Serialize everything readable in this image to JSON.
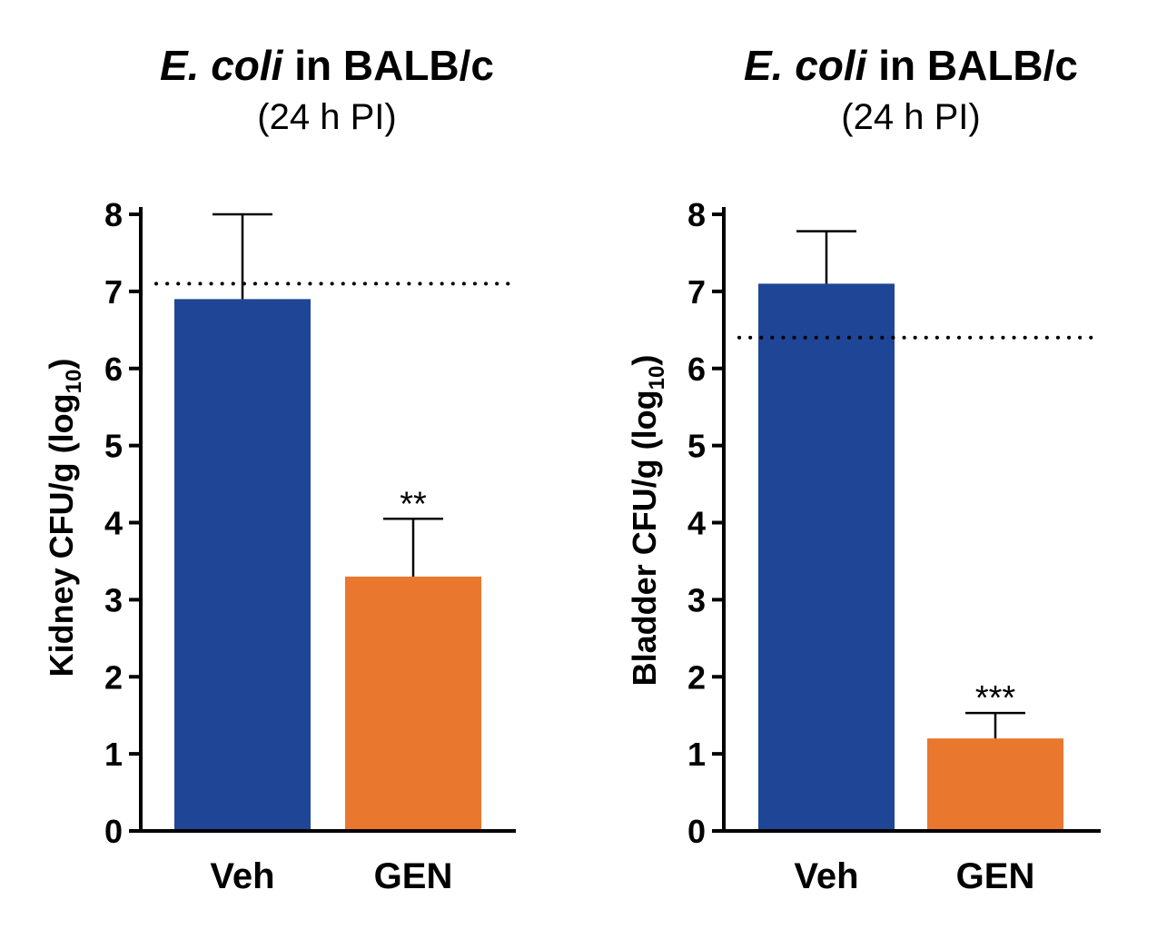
{
  "chart_data": [
    {
      "type": "bar",
      "title_italic": "E. coli",
      "title_rest": " in BALB/c",
      "subtitle": "(24 h PI)",
      "ylabel_main": "Kidney CFU/g (log",
      "ylabel_sub": "10",
      "ylabel_close": ")",
      "categories": [
        "Veh",
        "GEN"
      ],
      "values": [
        6.9,
        3.3
      ],
      "errors": [
        1.1,
        0.75
      ],
      "significance": [
        "",
        "**"
      ],
      "colors": [
        "#1f4696",
        "#ea772e"
      ],
      "reference_line": 7.1,
      "ylim": [
        0,
        8
      ],
      "yticks": [
        "0",
        "1",
        "2",
        "3",
        "4",
        "5",
        "6",
        "7",
        "8"
      ]
    },
    {
      "type": "bar",
      "title_italic": "E. coli",
      "title_rest": " in BALB/c",
      "subtitle": "(24 h PI)",
      "ylabel_main": "Bladder CFU/g (log",
      "ylabel_sub": "10",
      "ylabel_close": ")",
      "categories": [
        "Veh",
        "GEN"
      ],
      "values": [
        7.1,
        1.2
      ],
      "errors": [
        0.68,
        0.33
      ],
      "significance": [
        "",
        "***"
      ],
      "colors": [
        "#1f4696",
        "#ea772e"
      ],
      "reference_line": 6.4,
      "ylim": [
        0,
        8
      ],
      "yticks": [
        "0",
        "1",
        "2",
        "3",
        "4",
        "5",
        "6",
        "7",
        "8"
      ]
    }
  ]
}
